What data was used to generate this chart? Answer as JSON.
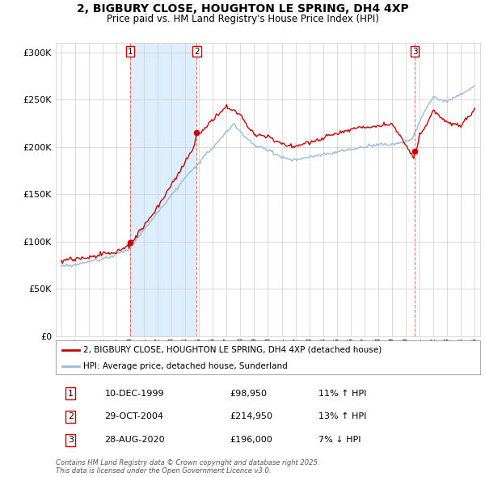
{
  "title_line1": "2, BIGBURY CLOSE, HOUGHTON LE SPRING, DH4 4XP",
  "title_line2": "Price paid vs. HM Land Registry's House Price Index (HPI)",
  "legend_entry1": "2, BIGBURY CLOSE, HOUGHTON LE SPRING, DH4 4XP (detached house)",
  "legend_entry2": "HPI: Average price, detached house, Sunderland",
  "sale1_date": "10-DEC-1999",
  "sale1_price": "£98,950",
  "sale1_hpi": "11% ↑ HPI",
  "sale2_date": "29-OCT-2004",
  "sale2_price": "£214,950",
  "sale2_hpi": "13% ↑ HPI",
  "sale3_date": "28-AUG-2020",
  "sale3_price": "£196,000",
  "sale3_hpi": "7% ↓ HPI",
  "footnote": "Contains HM Land Registry data © Crown copyright and database right 2025.\nThis data is licensed under the Open Government Licence v3.0.",
  "property_color": "#cc0000",
  "hpi_color": "#99bbdd",
  "shade_color": "#ddeeff",
  "background_color": "#ffffff",
  "grid_color": "#cccccc",
  "vline_color": "#ee6666",
  "ylim": [
    0,
    310000
  ],
  "yticks": [
    0,
    50000,
    100000,
    150000,
    200000,
    250000,
    300000
  ],
  "sale1_year": 2000.0,
  "sale2_year": 2004.83,
  "sale3_year": 2020.66,
  "sale1_price_val": 98950,
  "sale2_price_val": 214950,
  "sale3_price_val": 196000
}
